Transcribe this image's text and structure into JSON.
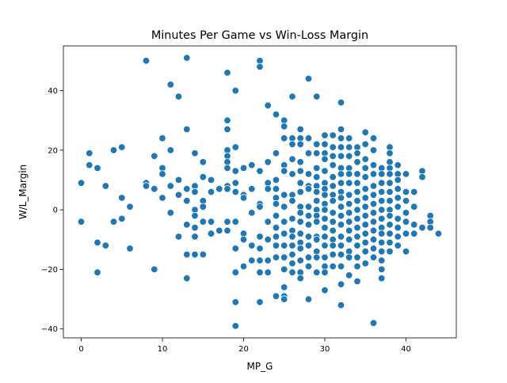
{
  "chart_data": {
    "type": "scatter",
    "title": "Minutes Per Game vs Win-Loss Margin",
    "xlabel": "MP_G",
    "ylabel": "W/L_Margin",
    "xlim": [
      -2.2,
      46.2
    ],
    "ylim": [
      -43,
      55
    ],
    "xticks": [
      0,
      10,
      20,
      30,
      40
    ],
    "yticks": [
      -40,
      -20,
      0,
      20,
      40
    ],
    "grid": false,
    "marker_color": "#1f77b4",
    "marker_edge_color": "#ffffff",
    "points": [
      [
        0,
        9
      ],
      [
        0,
        -4
      ],
      [
        1,
        19
      ],
      [
        1,
        15
      ],
      [
        2,
        14
      ],
      [
        2,
        -11
      ],
      [
        2,
        -21
      ],
      [
        3,
        8
      ],
      [
        3,
        -12
      ],
      [
        4,
        20
      ],
      [
        4,
        -4
      ],
      [
        5,
        21
      ],
      [
        5,
        4
      ],
      [
        5,
        -3
      ],
      [
        6,
        1
      ],
      [
        6,
        -13
      ],
      [
        8,
        50
      ],
      [
        8,
        9
      ],
      [
        8,
        8
      ],
      [
        9,
        18
      ],
      [
        9,
        7
      ],
      [
        9,
        -20
      ],
      [
        10,
        24
      ],
      [
        10,
        14
      ],
      [
        10,
        12
      ],
      [
        10,
        4
      ],
      [
        11,
        42
      ],
      [
        11,
        20
      ],
      [
        11,
        8
      ],
      [
        11,
        -1
      ],
      [
        12,
        38
      ],
      [
        12,
        10
      ],
      [
        12,
        5
      ],
      [
        12,
        -9
      ],
      [
        13,
        51
      ],
      [
        13,
        27
      ],
      [
        13,
        7
      ],
      [
        13,
        3
      ],
      [
        13,
        -5
      ],
      [
        13,
        -15
      ],
      [
        13,
        -23
      ],
      [
        14,
        19
      ],
      [
        14,
        8
      ],
      [
        14,
        6
      ],
      [
        14,
        0
      ],
      [
        14,
        -2
      ],
      [
        14,
        -6
      ],
      [
        14,
        -9
      ],
      [
        14,
        -15
      ],
      [
        15,
        16
      ],
      [
        15,
        11
      ],
      [
        15,
        3
      ],
      [
        15,
        1
      ],
      [
        15,
        -4
      ],
      [
        15,
        -15
      ],
      [
        16,
        10
      ],
      [
        16,
        6
      ],
      [
        16,
        -4
      ],
      [
        16,
        -8
      ],
      [
        17,
        7
      ],
      [
        17,
        -7
      ],
      [
        18,
        46
      ],
      [
        18,
        30
      ],
      [
        18,
        27
      ],
      [
        18,
        20
      ],
      [
        18,
        18
      ],
      [
        18,
        16
      ],
      [
        18,
        14
      ],
      [
        18,
        8
      ],
      [
        18,
        7
      ],
      [
        18,
        -4
      ],
      [
        18,
        -7
      ],
      [
        19,
        40
      ],
      [
        19,
        21
      ],
      [
        19,
        13
      ],
      [
        19,
        9
      ],
      [
        19,
        6
      ],
      [
        19,
        -4
      ],
      [
        19,
        -13
      ],
      [
        19,
        -21
      ],
      [
        19,
        -31
      ],
      [
        19,
        -39
      ],
      [
        20,
        14
      ],
      [
        20,
        5
      ],
      [
        20,
        4
      ],
      [
        20,
        -8
      ],
      [
        20,
        -10
      ],
      [
        20,
        -19
      ],
      [
        21,
        15
      ],
      [
        21,
        7
      ],
      [
        21,
        -1
      ],
      [
        21,
        -12
      ],
      [
        21,
        -17
      ],
      [
        22,
        50
      ],
      [
        22,
        48
      ],
      [
        22,
        13
      ],
      [
        22,
        2
      ],
      [
        22,
        1
      ],
      [
        22,
        -9
      ],
      [
        22,
        -13
      ],
      [
        22,
        -17
      ],
      [
        22,
        -21
      ],
      [
        22,
        -31
      ],
      [
        23,
        35
      ],
      [
        23,
        16
      ],
      [
        23,
        9
      ],
      [
        23,
        7
      ],
      [
        23,
        -4
      ],
      [
        23,
        -10
      ],
      [
        23,
        -17
      ],
      [
        23,
        -21
      ],
      [
        24,
        32
      ],
      [
        24,
        19
      ],
      [
        24,
        10
      ],
      [
        24,
        7
      ],
      [
        24,
        4
      ],
      [
        24,
        2
      ],
      [
        24,
        -2
      ],
      [
        24,
        -6
      ],
      [
        24,
        -9
      ],
      [
        24,
        -12
      ],
      [
        24,
        -16
      ],
      [
        24,
        -29
      ],
      [
        25,
        30
      ],
      [
        25,
        28
      ],
      [
        25,
        24
      ],
      [
        25,
        15
      ],
      [
        25,
        13
      ],
      [
        25,
        5
      ],
      [
        25,
        1
      ],
      [
        25,
        -4
      ],
      [
        25,
        -8
      ],
      [
        25,
        -12
      ],
      [
        25,
        -16
      ],
      [
        25,
        -20
      ],
      [
        25,
        -26
      ],
      [
        25,
        -29
      ],
      [
        25,
        -30
      ],
      [
        26,
        38
      ],
      [
        26,
        24
      ],
      [
        26,
        22
      ],
      [
        26,
        17
      ],
      [
        26,
        12
      ],
      [
        26,
        5
      ],
      [
        26,
        3
      ],
      [
        26,
        -3
      ],
      [
        26,
        -7
      ],
      [
        26,
        -9
      ],
      [
        26,
        -12
      ],
      [
        26,
        -15
      ],
      [
        26,
        -18
      ],
      [
        26,
        -21
      ],
      [
        27,
        27
      ],
      [
        27,
        24
      ],
      [
        27,
        22
      ],
      [
        27,
        16
      ],
      [
        27,
        13
      ],
      [
        27,
        9
      ],
      [
        27,
        6
      ],
      [
        27,
        1
      ],
      [
        27,
        -1
      ],
      [
        27,
        -4
      ],
      [
        27,
        -8
      ],
      [
        27,
        -11
      ],
      [
        27,
        -13
      ],
      [
        27,
        -17
      ],
      [
        27,
        -21
      ],
      [
        27,
        -23
      ],
      [
        28,
        44
      ],
      [
        28,
        24
      ],
      [
        28,
        19
      ],
      [
        28,
        12
      ],
      [
        28,
        8
      ],
      [
        28,
        7
      ],
      [
        28,
        1
      ],
      [
        28,
        -2
      ],
      [
        28,
        -5
      ],
      [
        28,
        -9
      ],
      [
        28,
        -12
      ],
      [
        28,
        -16
      ],
      [
        28,
        -19
      ],
      [
        28,
        -30
      ],
      [
        29,
        38
      ],
      [
        29,
        22
      ],
      [
        29,
        19
      ],
      [
        29,
        14
      ],
      [
        29,
        11
      ],
      [
        29,
        8
      ],
      [
        29,
        6
      ],
      [
        29,
        3
      ],
      [
        29,
        0
      ],
      [
        29,
        -2
      ],
      [
        29,
        -4
      ],
      [
        29,
        -9
      ],
      [
        29,
        -10
      ],
      [
        29,
        -14
      ],
      [
        29,
        -16
      ],
      [
        29,
        -21
      ],
      [
        30,
        25
      ],
      [
        30,
        22
      ],
      [
        30,
        19
      ],
      [
        30,
        17
      ],
      [
        30,
        13
      ],
      [
        30,
        9
      ],
      [
        30,
        7
      ],
      [
        30,
        5
      ],
      [
        30,
        2
      ],
      [
        30,
        0
      ],
      [
        30,
        -3
      ],
      [
        30,
        -6
      ],
      [
        30,
        -9
      ],
      [
        30,
        -12
      ],
      [
        30,
        -16
      ],
      [
        30,
        -19
      ],
      [
        30,
        -21
      ],
      [
        30,
        -27
      ],
      [
        31,
        25
      ],
      [
        31,
        21
      ],
      [
        31,
        18
      ],
      [
        31,
        15
      ],
      [
        31,
        11
      ],
      [
        31,
        8
      ],
      [
        31,
        5
      ],
      [
        31,
        3
      ],
      [
        31,
        -1
      ],
      [
        31,
        -4
      ],
      [
        31,
        -7
      ],
      [
        31,
        -10
      ],
      [
        31,
        -12
      ],
      [
        31,
        -15
      ],
      [
        31,
        -19
      ],
      [
        32,
        36
      ],
      [
        32,
        27
      ],
      [
        32,
        24
      ],
      [
        32,
        21
      ],
      [
        32,
        18
      ],
      [
        32,
        14
      ],
      [
        32,
        12
      ],
      [
        32,
        9
      ],
      [
        32,
        6
      ],
      [
        32,
        4
      ],
      [
        32,
        1
      ],
      [
        32,
        -2
      ],
      [
        32,
        -5
      ],
      [
        32,
        -9
      ],
      [
        32,
        -12
      ],
      [
        32,
        -15
      ],
      [
        32,
        -19
      ],
      [
        32,
        -25
      ],
      [
        32,
        -32
      ],
      [
        33,
        24
      ],
      [
        33,
        21
      ],
      [
        33,
        18
      ],
      [
        33,
        14
      ],
      [
        33,
        12
      ],
      [
        33,
        9
      ],
      [
        33,
        5
      ],
      [
        33,
        2
      ],
      [
        33,
        -1
      ],
      [
        33,
        -4
      ],
      [
        33,
        -7
      ],
      [
        33,
        -10
      ],
      [
        33,
        -14
      ],
      [
        33,
        -16
      ],
      [
        33,
        -22
      ],
      [
        34,
        21
      ],
      [
        34,
        19
      ],
      [
        34,
        16
      ],
      [
        34,
        12
      ],
      [
        34,
        9
      ],
      [
        34,
        6
      ],
      [
        34,
        3
      ],
      [
        34,
        0
      ],
      [
        34,
        -3
      ],
      [
        34,
        -6
      ],
      [
        34,
        -9
      ],
      [
        34,
        -12
      ],
      [
        34,
        -16
      ],
      [
        34,
        -19
      ],
      [
        34,
        -24
      ],
      [
        35,
        26
      ],
      [
        35,
        22
      ],
      [
        35,
        17
      ],
      [
        35,
        14
      ],
      [
        35,
        11
      ],
      [
        35,
        7
      ],
      [
        35,
        4
      ],
      [
        35,
        1
      ],
      [
        35,
        -2
      ],
      [
        35,
        -5
      ],
      [
        35,
        -8
      ],
      [
        35,
        -11
      ],
      [
        35,
        -14
      ],
      [
        35,
        -18
      ],
      [
        36,
        24
      ],
      [
        36,
        20
      ],
      [
        36,
        15
      ],
      [
        36,
        12
      ],
      [
        36,
        8
      ],
      [
        36,
        5
      ],
      [
        36,
        2
      ],
      [
        36,
        -1
      ],
      [
        36,
        -4
      ],
      [
        36,
        -7
      ],
      [
        36,
        -10
      ],
      [
        36,
        -13
      ],
      [
        36,
        -16
      ],
      [
        36,
        -38
      ],
      [
        37,
        14
      ],
      [
        37,
        12
      ],
      [
        37,
        9
      ],
      [
        37,
        6
      ],
      [
        37,
        3
      ],
      [
        37,
        0
      ],
      [
        37,
        -3
      ],
      [
        37,
        -6
      ],
      [
        37,
        -8
      ],
      [
        37,
        -11
      ],
      [
        37,
        -14
      ],
      [
        37,
        -17
      ],
      [
        37,
        -20
      ],
      [
        37,
        -23
      ],
      [
        38,
        21
      ],
      [
        38,
        19
      ],
      [
        38,
        16
      ],
      [
        38,
        14
      ],
      [
        38,
        12
      ],
      [
        38,
        9
      ],
      [
        38,
        6
      ],
      [
        38,
        3
      ],
      [
        38,
        0
      ],
      [
        38,
        -2
      ],
      [
        38,
        -5
      ],
      [
        38,
        -8
      ],
      [
        38,
        -11
      ],
      [
        38,
        -14
      ],
      [
        39,
        15
      ],
      [
        39,
        12
      ],
      [
        39,
        10
      ],
      [
        39,
        7
      ],
      [
        39,
        4
      ],
      [
        39,
        1
      ],
      [
        39,
        -3
      ],
      [
        39,
        -6
      ],
      [
        39,
        -9
      ],
      [
        39,
        -12
      ],
      [
        40,
        12
      ],
      [
        40,
        6
      ],
      [
        40,
        3
      ],
      [
        40,
        -1
      ],
      [
        40,
        -4
      ],
      [
        40,
        -8
      ],
      [
        40,
        -14
      ],
      [
        41,
        6
      ],
      [
        41,
        1
      ],
      [
        41,
        -5
      ],
      [
        41,
        -8
      ],
      [
        42,
        13
      ],
      [
        42,
        11
      ],
      [
        42,
        -6
      ],
      [
        43,
        -2
      ],
      [
        43,
        -4
      ],
      [
        43,
        -6
      ],
      [
        44,
        -8
      ]
    ]
  }
}
